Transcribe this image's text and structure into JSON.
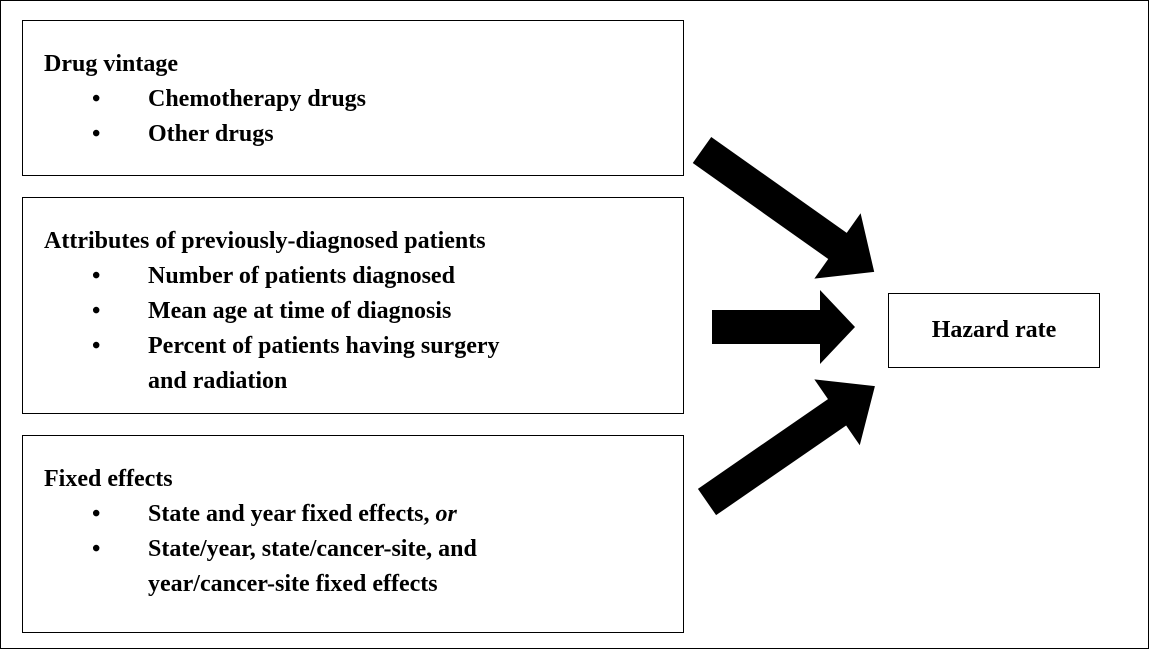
{
  "boxes": [
    {
      "title": "Drug vintage",
      "items": [
        {
          "lines": [
            "Chemotherapy drugs"
          ]
        },
        {
          "lines": [
            "Other drugs"
          ]
        }
      ]
    },
    {
      "title": "Attributes of previously-diagnosed patients",
      "items": [
        {
          "lines": [
            "Number of patients diagnosed"
          ]
        },
        {
          "lines": [
            "Mean age at time of diagnosis"
          ]
        },
        {
          "lines": [
            "Percent of patients having surgery",
            "and radiation"
          ]
        }
      ]
    },
    {
      "title": "Fixed effects",
      "items": [
        {
          "lines": [
            "State and year fixed effects,"
          ],
          "emphasis": "or"
        },
        {
          "lines": [
            "State/year, state/cancer-site, and",
            "year/cancer-site fixed effects"
          ]
        }
      ]
    }
  ],
  "outcome": {
    "label": "Hazard rate"
  }
}
